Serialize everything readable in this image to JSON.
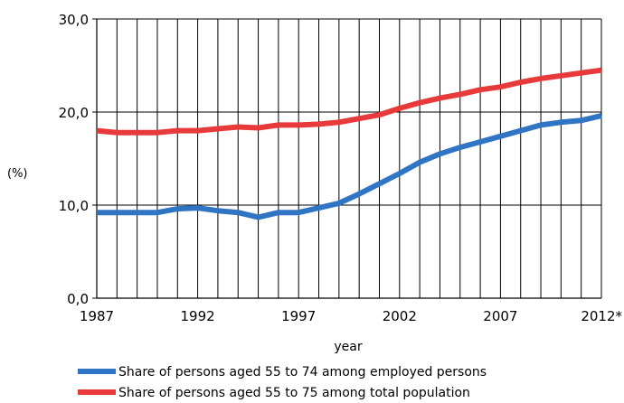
{
  "chart_data": {
    "type": "line",
    "title": "",
    "xlabel": "year",
    "ylabel": "(%)",
    "x": [
      1987,
      1988,
      1989,
      1990,
      1991,
      1992,
      1993,
      1994,
      1995,
      1996,
      1997,
      1998,
      1999,
      2000,
      2001,
      2002,
      2003,
      2004,
      2005,
      2006,
      2007,
      2008,
      2009,
      2010,
      2011,
      2012
    ],
    "x_tick_labels": [
      "1987",
      "1992",
      "1997",
      "2002",
      "2007",
      "2012*"
    ],
    "y_tick_labels": [
      "0,0",
      "10,0",
      "20,0",
      "30,0"
    ],
    "ylim": [
      0,
      30
    ],
    "xlim": [
      1987,
      2012
    ],
    "grid": "vertical lines every year, horizontal lines every 10",
    "legend_position": "bottom",
    "series": [
      {
        "name": "Share of persons aged 55 to 74 among employed persons",
        "color": "#2f75c4",
        "values": [
          9.2,
          9.2,
          9.2,
          9.2,
          9.6,
          9.7,
          9.4,
          9.2,
          8.7,
          9.2,
          9.2,
          9.7,
          10.2,
          11.2,
          12.3,
          13.4,
          14.6,
          15.5,
          16.2,
          16.8,
          17.4,
          18.0,
          18.6,
          18.9,
          19.1,
          19.6
        ]
      },
      {
        "name": "Share of persons aged 55 to 75 among total population",
        "color": "#e83a3a",
        "values": [
          18.0,
          17.8,
          17.8,
          17.8,
          18.0,
          18.0,
          18.2,
          18.4,
          18.3,
          18.6,
          18.6,
          18.7,
          18.9,
          19.3,
          19.7,
          20.4,
          21.0,
          21.5,
          21.9,
          22.4,
          22.7,
          23.2,
          23.6,
          23.9,
          24.2,
          24.5
        ]
      }
    ]
  }
}
